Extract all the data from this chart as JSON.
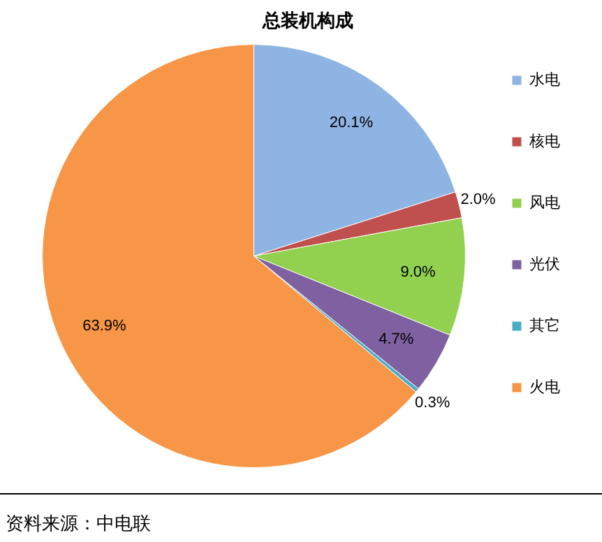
{
  "chart_data": {
    "type": "pie",
    "title": "总装机构成",
    "categories": [
      "水电",
      "核电",
      "风电",
      "光伏",
      "其它",
      "火电"
    ],
    "values": [
      20.1,
      2.0,
      9.0,
      4.7,
      0.3,
      63.9
    ],
    "colors": [
      "#8eb4e3",
      "#c0504d",
      "#92d050",
      "#7f60a0",
      "#4bacc6",
      "#f79646"
    ],
    "value_labels": [
      "20.1%",
      "2.0%",
      "9.0%",
      "4.7%",
      "0.3%",
      "63.9%"
    ],
    "legend": "right",
    "annotations": [
      "资料来源：中电联"
    ]
  }
}
